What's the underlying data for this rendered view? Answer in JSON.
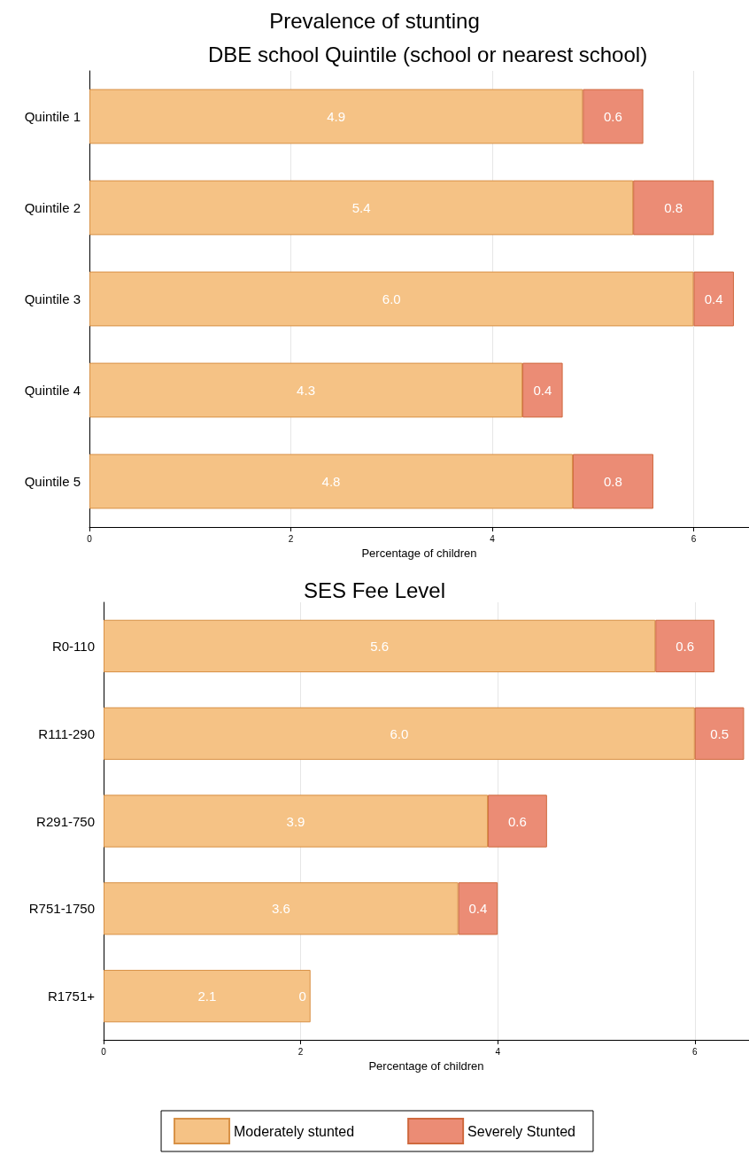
{
  "chart_data": [
    {
      "type": "bar",
      "orientation": "horizontal",
      "stacked": true,
      "title": "Prevalence of stunting",
      "subtitle": "DBE school Quintile (school or nearest school)",
      "xlabel": "Percentage of children",
      "categories": [
        "Quintile 1",
        "Quintile 2",
        "Quintile 3",
        "Quintile 4",
        "Quintile 5"
      ],
      "xlim": [
        0,
        6.55
      ],
      "xticks": [
        0,
        2,
        4,
        6
      ],
      "grid": "x",
      "series": [
        {
          "color": "#f5c285",
          "values": [
            4.9,
            5.4,
            6.0,
            4.3,
            4.8
          ],
          "value_labels": [
            "4.9",
            "5.4",
            "6.0",
            "4.3",
            "4.8"
          ]
        },
        {
          "color": "#eb8c75",
          "values": [
            0.6,
            0.8,
            0.4,
            0.4,
            0.8
          ],
          "value_labels": [
            "0.6",
            "0.8",
            "0.4",
            "0.4",
            "0.8"
          ]
        }
      ]
    },
    {
      "type": "bar",
      "orientation": "horizontal",
      "stacked": true,
      "title": "SES Fee Level",
      "xlabel": "Percentage of children",
      "categories": [
        "R0-110",
        "R111-290",
        "R291-750",
        "R751-1750",
        "R1751+"
      ],
      "xlim": [
        0,
        6.55
      ],
      "xticks": [
        0,
        2,
        4,
        6
      ],
      "grid": "x",
      "legend": "bottom",
      "series": [
        {
          "name": "Moderately stunted",
          "color": "#f5c285",
          "values": [
            5.6,
            6.0,
            3.9,
            3.6,
            2.1
          ],
          "value_labels": [
            "5.6",
            "6.0",
            "3.9",
            "3.6",
            "2.1"
          ]
        },
        {
          "name": "Severely Stunted",
          "color": "#eb8c75",
          "values": [
            0.6,
            0.5,
            0.6,
            0.4,
            0.0
          ],
          "value_labels": [
            "0.6",
            "0.5",
            "0.6",
            "0.4",
            "0"
          ]
        }
      ]
    }
  ]
}
